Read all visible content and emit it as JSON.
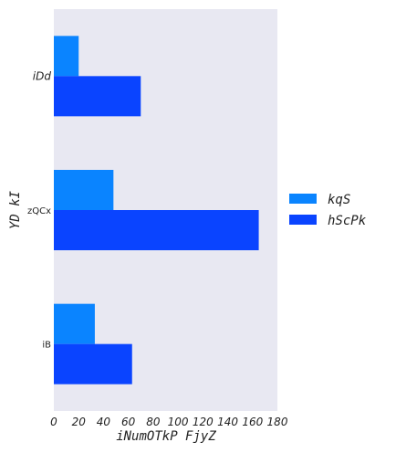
{
  "chart_data": {
    "type": "bar",
    "orientation": "horizontal",
    "categories": [
      "iDd",
      "zQCx",
      "iB"
    ],
    "series": [
      {
        "name": "kqS",
        "color": "#0a84ff",
        "values": [
          20,
          48,
          33
        ]
      },
      {
        "name": "hScPk",
        "color": "#0a44ff",
        "values": [
          70,
          165,
          63
        ]
      }
    ],
    "xlabel": "iNumOTkP FjyZ",
    "ylabel": "YD kI",
    "xlim": [
      0,
      180
    ],
    "xticks": [
      0,
      20,
      40,
      60,
      80,
      100,
      120,
      140,
      160,
      180
    ],
    "grid": false,
    "background": "#e8e8f2",
    "legend_position": "right"
  }
}
